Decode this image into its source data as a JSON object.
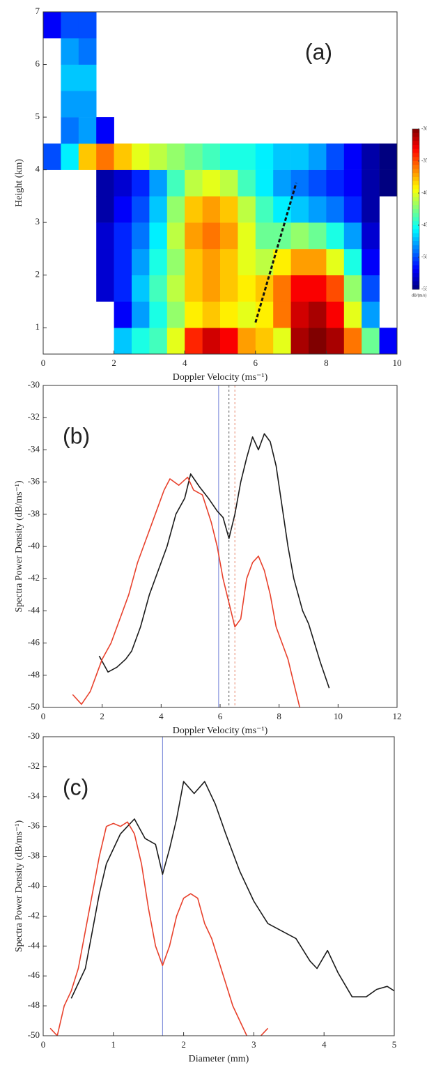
{
  "chart_data": [
    {
      "type": "heatmap",
      "annotation": "(a)",
      "xlabel": "Doppler Velocity (ms⁻¹)",
      "ylabel": "Height (km)",
      "xlim": [
        0,
        10
      ],
      "ylim": [
        0.5,
        7
      ],
      "xticks": [
        0,
        2,
        4,
        6,
        8,
        10
      ],
      "yticks": [
        1,
        2,
        3,
        4,
        5,
        6,
        7
      ],
      "x_edges": [
        0,
        0.5,
        1,
        1.5,
        2,
        2.5,
        3,
        3.5,
        4,
        4.5,
        5,
        5.5,
        6,
        6.5,
        7,
        7.5,
        8,
        8.5,
        9,
        9.5,
        10
      ],
      "y_edges": [
        0.5,
        1,
        1.5,
        2,
        2.5,
        3,
        3.5,
        4,
        4.5,
        5,
        5.5,
        6,
        6.5,
        7
      ],
      "z": [
        [
          null,
          null,
          null,
          null,
          -47,
          -45,
          -44,
          -40,
          -34,
          -32,
          -33,
          -37,
          -38,
          -40,
          -31,
          -30,
          -31,
          -36,
          -43,
          -52
        ],
        [
          null,
          null,
          null,
          null,
          -52,
          -48,
          -45,
          -42,
          -39,
          -38,
          -39,
          -40,
          -39,
          -36,
          -32,
          -31,
          -33,
          -40,
          -48,
          null
        ],
        [
          null,
          null,
          null,
          -53,
          -51,
          -47,
          -44,
          -41,
          -38,
          -37,
          -38,
          -39,
          -38,
          -36,
          -33,
          -33,
          -35,
          -42,
          -50,
          null
        ],
        [
          null,
          null,
          null,
          -53,
          -51,
          -48,
          -45,
          -42,
          -38,
          -37,
          -38,
          -40,
          -41,
          -39,
          -37,
          -37,
          -40,
          -45,
          -52,
          null
        ],
        [
          null,
          null,
          null,
          -53,
          -51,
          -49,
          -46,
          -41,
          -37,
          -36,
          -37,
          -40,
          -43,
          -43,
          -42,
          -43,
          -45,
          -48,
          -53,
          null
        ],
        [
          null,
          null,
          null,
          -54,
          -52,
          -50,
          -47,
          -42,
          -38,
          -37,
          -38,
          -41,
          -44,
          -46,
          -47,
          -48,
          -49,
          -51,
          -54,
          null
        ],
        [
          null,
          null,
          null,
          -54,
          -53,
          -51,
          -48,
          -44,
          -41,
          -40,
          -41,
          -44,
          -46,
          -48,
          -49,
          -50,
          -51,
          -52,
          -54,
          -55
        ],
        [
          -50,
          -46,
          -38,
          -36,
          -38,
          -40,
          -41,
          -42,
          -43,
          -44,
          -45,
          -45,
          -46,
          -47,
          -47,
          -48,
          -50,
          -52,
          -54,
          -55
        ],
        [
          null,
          -49,
          -48,
          -52,
          null,
          null,
          null,
          null,
          null,
          null,
          null,
          null,
          null,
          null,
          null,
          null,
          null,
          null,
          null,
          null
        ],
        [
          null,
          -48,
          -48,
          null,
          null,
          null,
          null,
          null,
          null,
          null,
          null,
          null,
          null,
          null,
          null,
          null,
          null,
          null,
          null,
          null
        ],
        [
          null,
          -47,
          -47,
          null,
          null,
          null,
          null,
          null,
          null,
          null,
          null,
          null,
          null,
          null,
          null,
          null,
          null,
          null,
          null,
          null
        ],
        [
          null,
          -48,
          -49,
          null,
          null,
          null,
          null,
          null,
          null,
          null,
          null,
          null,
          null,
          null,
          null,
          null,
          null,
          null,
          null,
          null
        ],
        [
          -52,
          -50,
          -50,
          null,
          null,
          null,
          null,
          null,
          null,
          null,
          null,
          null,
          null,
          null,
          null,
          null,
          null,
          null,
          null,
          null
        ]
      ],
      "clim": [
        -55,
        -30
      ],
      "colormap": "jet",
      "colorbar_ticks": [
        -30,
        -35,
        -40,
        -45,
        -50,
        -55
      ],
      "colorbar_label": "dB/(m/s)",
      "series": [
        {
          "x": [
            6,
            7.15
          ],
          "values": [
            1.1,
            3.75
          ],
          "color": "#111111",
          "dash": true
        }
      ]
    },
    {
      "type": "line",
      "annotation": "(b)",
      "xlabel": "Doppler Velocity (ms⁻¹)",
      "ylabel": "Spectra Power Density (dB/ms⁻¹)",
      "xlim": [
        0,
        12
      ],
      "ylim": [
        -50,
        -30
      ],
      "xticks": [
        0,
        2,
        4,
        6,
        8,
        10,
        12
      ],
      "yticks": [
        -30,
        -32,
        -34,
        -36,
        -38,
        -40,
        -42,
        -44,
        -46,
        -48,
        -50
      ],
      "vlines": [
        {
          "x": 5.95,
          "color": "#6f7fd6",
          "dash": false
        },
        {
          "x": 6.3,
          "color": "#555555",
          "dash": true
        },
        {
          "x": 6.5,
          "color": "#e88a70",
          "dash": true
        }
      ],
      "series": [
        {
          "color": "#1a1a1a",
          "x": [
            1.9,
            2.2,
            2.5,
            2.8,
            3.0,
            3.3,
            3.6,
            3.9,
            4.2,
            4.5,
            4.8,
            5.0,
            5.3,
            5.6,
            5.9,
            6.1,
            6.3,
            6.5,
            6.7,
            6.9,
            7.1,
            7.3,
            7.5,
            7.7,
            7.9,
            8.1,
            8.3,
            8.5,
            8.8,
            9.0,
            9.2,
            9.4,
            9.7
          ],
          "values": [
            -46.8,
            -47.8,
            -47.5,
            -47,
            -46.5,
            -45,
            -43,
            -41.5,
            -40,
            -38,
            -37,
            -35.5,
            -36.3,
            -37,
            -37.8,
            -38.2,
            -39.5,
            -38,
            -36,
            -34.5,
            -33.2,
            -34,
            -33,
            -33.5,
            -35,
            -37.5,
            -40,
            -42,
            -44,
            -44.8,
            -46,
            -47.2,
            -48.8
          ]
        },
        {
          "color": "#e8412c",
          "x": [
            1.0,
            1.3,
            1.6,
            1.8,
            2.0,
            2.3,
            2.6,
            2.9,
            3.2,
            3.5,
            3.8,
            4.1,
            4.3,
            4.6,
            4.9,
            5.1,
            5.4,
            5.7,
            5.9,
            6.1,
            6.3,
            6.5,
            6.7,
            6.9,
            7.1,
            7.3,
            7.5,
            7.7,
            7.9,
            8.1,
            8.3,
            8.5,
            8.7
          ],
          "values": [
            -49.2,
            -49.8,
            -49,
            -48,
            -47,
            -46,
            -44.5,
            -43,
            -41,
            -39.5,
            -38,
            -36.5,
            -35.8,
            -36.2,
            -35.7,
            -36.5,
            -36.8,
            -38.5,
            -40,
            -42,
            -43.5,
            -45,
            -44.5,
            -42,
            -41,
            -40.6,
            -41.5,
            -43,
            -45,
            -46,
            -47,
            -48.5,
            -50
          ]
        }
      ]
    },
    {
      "type": "line",
      "annotation": "(c)",
      "xlabel": "Diameter (mm)",
      "ylabel": "Spectra Power Density (dB/ms⁻¹)",
      "xlim": [
        0,
        5
      ],
      "ylim": [
        -50,
        -30
      ],
      "xticks": [
        0,
        1,
        2,
        3,
        4,
        5
      ],
      "yticks": [
        -30,
        -32,
        -34,
        -36,
        -38,
        -40,
        -42,
        -44,
        -46,
        -48,
        -50
      ],
      "vlines": [
        {
          "x": 1.7,
          "color": "#6f7fd6",
          "dash": false
        }
      ],
      "series": [
        {
          "color": "#1a1a1a",
          "x": [
            0.4,
            0.5,
            0.6,
            0.7,
            0.8,
            0.9,
            1.0,
            1.1,
            1.2,
            1.3,
            1.45,
            1.6,
            1.7,
            1.8,
            1.9,
            2.0,
            2.15,
            2.3,
            2.45,
            2.6,
            2.8,
            3.0,
            3.2,
            3.4,
            3.6,
            3.8,
            3.9,
            4.05,
            4.2,
            4.4,
            4.6,
            4.75,
            4.9,
            5.0
          ],
          "values": [
            -47.5,
            -46.5,
            -45.5,
            -43,
            -40.5,
            -38.5,
            -37.5,
            -36.5,
            -36,
            -35.5,
            -36.8,
            -37.2,
            -39.2,
            -37.5,
            -35.5,
            -33,
            -33.8,
            -33,
            -34.5,
            -36.5,
            -39,
            -41,
            -42.5,
            -43,
            -43.5,
            -45,
            -45.5,
            -44.3,
            -45.8,
            -47.4,
            -47.4,
            -46.9,
            -46.7,
            -47
          ]
        },
        {
          "color": "#e8412c",
          "x": [
            0.1,
            0.2,
            0.3,
            0.4,
            0.5,
            0.6,
            0.7,
            0.8,
            0.9,
            1.0,
            1.1,
            1.2,
            1.3,
            1.4,
            1.5,
            1.6,
            1.7,
            1.8,
            1.9,
            2.0,
            2.1,
            2.2,
            2.3,
            2.4,
            2.5,
            2.6,
            2.7,
            2.8,
            2.9,
            3.0,
            3.1,
            3.2
          ],
          "values": [
            -49.5,
            -50,
            -48,
            -47,
            -45.5,
            -43,
            -40.5,
            -38,
            -36,
            -35.8,
            -36,
            -35.7,
            -36.5,
            -38.5,
            -41.5,
            -44,
            -45.3,
            -44,
            -42,
            -40.8,
            -40.5,
            -40.8,
            -42.5,
            -43.5,
            -45,
            -46.5,
            -48,
            -49,
            -50,
            null,
            -50,
            -49.5
          ]
        }
      ]
    }
  ]
}
